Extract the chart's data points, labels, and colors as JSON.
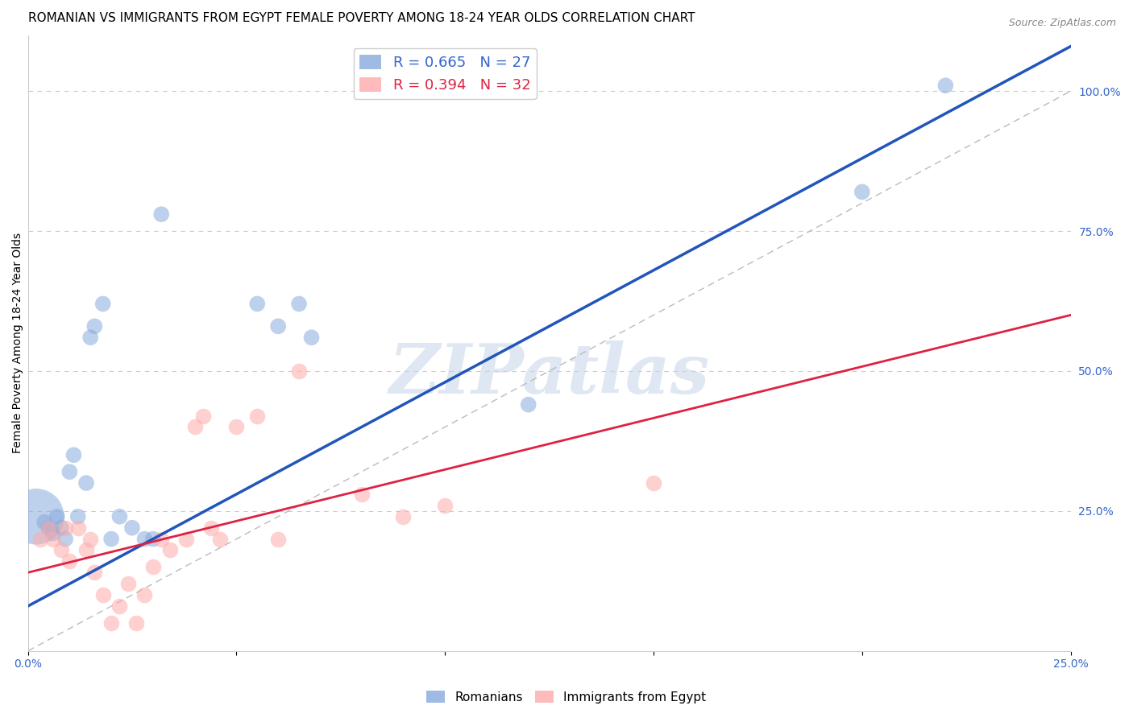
{
  "title": "ROMANIAN VS IMMIGRANTS FROM EGYPT FEMALE POVERTY AMONG 18-24 YEAR OLDS CORRELATION CHART",
  "source": "Source: ZipAtlas.com",
  "ylabel": "Female Poverty Among 18-24 Year Olds",
  "xlim": [
    0.0,
    0.25
  ],
  "ylim": [
    0.0,
    1.1
  ],
  "xtick_pos": [
    0.0,
    0.05,
    0.1,
    0.15,
    0.2,
    0.25
  ],
  "xtick_labels": [
    "0.0%",
    "",
    "",
    "",
    "",
    "25.0%"
  ],
  "ytick_labels_right": [
    "100.0%",
    "75.0%",
    "50.0%",
    "25.0%"
  ],
  "ytick_positions_right": [
    1.0,
    0.75,
    0.5,
    0.25
  ],
  "R_blue": "0.665",
  "N_blue": "27",
  "R_pink": "0.394",
  "N_pink": "32",
  "blue_color": "#88AADD",
  "pink_color": "#FFAAAA",
  "blue_line_color": "#2255BB",
  "pink_line_color": "#DD2244",
  "diagonal_color": "#BBBBBB",
  "grid_color": "#CCCCCC",
  "watermark": "ZIPatlas",
  "blue_scatter_x": [
    0.002,
    0.004,
    0.005,
    0.006,
    0.007,
    0.008,
    0.009,
    0.01,
    0.011,
    0.012,
    0.014,
    0.015,
    0.016,
    0.018,
    0.02,
    0.022,
    0.025,
    0.028,
    0.03,
    0.032,
    0.055,
    0.06,
    0.065,
    0.068,
    0.12,
    0.2,
    0.22
  ],
  "blue_scatter_y": [
    0.24,
    0.23,
    0.22,
    0.21,
    0.24,
    0.22,
    0.2,
    0.32,
    0.35,
    0.24,
    0.3,
    0.56,
    0.58,
    0.62,
    0.2,
    0.24,
    0.22,
    0.2,
    0.2,
    0.78,
    0.62,
    0.58,
    0.62,
    0.56,
    0.44,
    0.82,
    1.01
  ],
  "blue_scatter_sizes": [
    2500,
    200,
    200,
    200,
    200,
    200,
    200,
    200,
    200,
    200,
    200,
    200,
    200,
    200,
    200,
    200,
    200,
    200,
    200,
    200,
    200,
    200,
    200,
    200,
    200,
    200,
    200
  ],
  "pink_scatter_x": [
    0.003,
    0.005,
    0.006,
    0.008,
    0.009,
    0.01,
    0.012,
    0.014,
    0.015,
    0.016,
    0.018,
    0.02,
    0.022,
    0.024,
    0.026,
    0.028,
    0.03,
    0.032,
    0.034,
    0.038,
    0.04,
    0.042,
    0.044,
    0.046,
    0.05,
    0.055,
    0.06,
    0.065,
    0.08,
    0.09,
    0.1,
    0.15
  ],
  "pink_scatter_y": [
    0.2,
    0.22,
    0.2,
    0.18,
    0.22,
    0.16,
    0.22,
    0.18,
    0.2,
    0.14,
    0.1,
    0.05,
    0.08,
    0.12,
    0.05,
    0.1,
    0.15,
    0.2,
    0.18,
    0.2,
    0.4,
    0.42,
    0.22,
    0.2,
    0.4,
    0.42,
    0.2,
    0.5,
    0.28,
    0.24,
    0.26,
    0.3
  ],
  "blue_line_x": [
    0.0,
    0.25
  ],
  "blue_line_y": [
    0.08,
    1.08
  ],
  "pink_line_x": [
    0.0,
    0.25
  ],
  "pink_line_y": [
    0.14,
    0.6
  ],
  "title_fontsize": 11,
  "label_fontsize": 10,
  "tick_fontsize": 10,
  "legend_fontsize": 13,
  "source_fontsize": 9
}
